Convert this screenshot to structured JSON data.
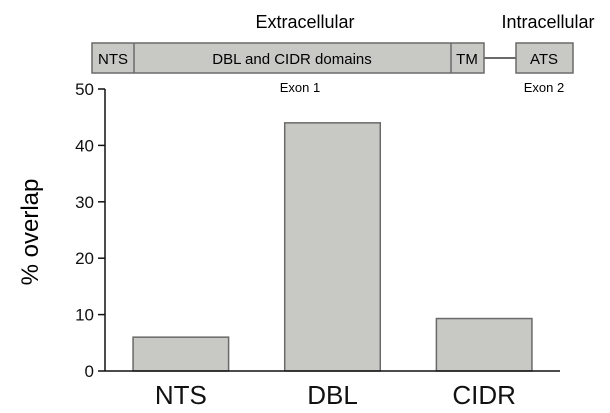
{
  "diagram": {
    "region_labels": {
      "extracellular": "Extracellular",
      "intracellular": "Intracellular"
    },
    "exon1": {
      "segments": [
        {
          "key": "nts",
          "label": "NTS"
        },
        {
          "key": "dbl_cidr",
          "label": "DBL and CIDR domains"
        },
        {
          "key": "tm",
          "label": "TM"
        }
      ],
      "label": "Exon 1"
    },
    "exon2": {
      "segments": [
        {
          "key": "ats",
          "label": "ATS"
        }
      ],
      "label": "Exon 2"
    },
    "colors": {
      "fill": "#c8c8c4",
      "stroke": "#6a6a6a"
    }
  },
  "chart_data": {
    "type": "bar",
    "categories": [
      "NTS",
      "DBL",
      "CIDR"
    ],
    "values": [
      6,
      44,
      9.3
    ],
    "title": "",
    "xlabel": "",
    "ylabel": "% overlap",
    "ylim": [
      0,
      50
    ],
    "yticks": [
      0,
      10,
      20,
      30,
      40,
      50
    ],
    "grid": false,
    "colors": {
      "bar_fill": "#c8c8c4",
      "bar_stroke": "#6a6a6a",
      "axis": "#111111"
    }
  }
}
